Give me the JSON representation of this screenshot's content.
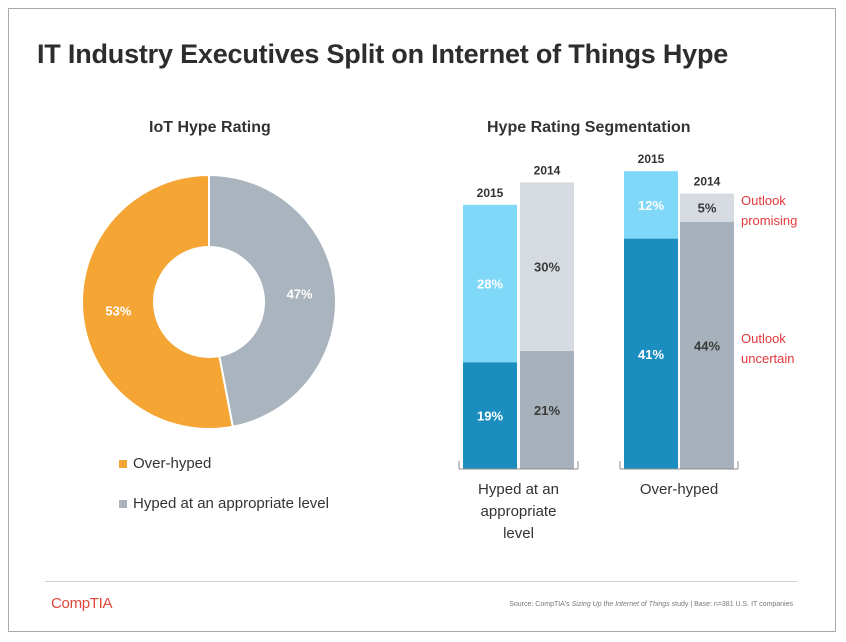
{
  "title": "IT Industry Executives Split on Internet of Things Hype",
  "colors": {
    "orange": "#f4a534",
    "gray": "#a9b4be",
    "light_blue": "#7fd8f7",
    "dark_blue": "#1b8ebf",
    "light_gray": "#d5dbe1",
    "mid_gray": "#a6b1bb",
    "red": "#e5383b"
  },
  "chart_data": [
    {
      "type": "pie",
      "variant": "donut",
      "title": "IoT Hype Rating",
      "slices": [
        {
          "label": "Over-hyped",
          "value": 53,
          "display": "53%",
          "color": "#f4a534"
        },
        {
          "label": "Hyped at an appropriate level",
          "value": 47,
          "display": "47%",
          "color": "#a9b4be"
        }
      ],
      "legend_position": "bottom-left"
    },
    {
      "type": "bar",
      "variant": "stacked",
      "title": "Hype Rating Segmentation",
      "groups": [
        {
          "label": "Hyped at an appropriate level",
          "label_lines": [
            "Hyped at an",
            "appropriate",
            "level"
          ],
          "bars": [
            {
              "year": "2015",
              "segments": [
                {
                  "name": "Outlook uncertain",
                  "value": 19,
                  "display": "19%",
                  "color": "#1b8ebf",
                  "text": "#ffffff"
                },
                {
                  "name": "Outlook promising",
                  "value": 28,
                  "display": "28%",
                  "color": "#7fd8f7",
                  "text": "#ffffff"
                }
              ]
            },
            {
              "year": "2014",
              "segments": [
                {
                  "name": "Outlook uncertain",
                  "value": 21,
                  "display": "21%",
                  "color": "#a6b1bb",
                  "text": "#3a3a3a"
                },
                {
                  "name": "Outlook promising",
                  "value": 30,
                  "display": "30%",
                  "color": "#d5dbe1",
                  "text": "#3a3a3a"
                }
              ]
            }
          ]
        },
        {
          "label": "Over-hyped",
          "label_lines": [
            "Over-hyped"
          ],
          "bars": [
            {
              "year": "2015",
              "segments": [
                {
                  "name": "Outlook uncertain",
                  "value": 41,
                  "display": "41%",
                  "color": "#1b8ebf",
                  "text": "#ffffff"
                },
                {
                  "name": "Outlook promising",
                  "value": 12,
                  "display": "12%",
                  "color": "#7fd8f7",
                  "text": "#ffffff"
                }
              ]
            },
            {
              "year": "2014",
              "segments": [
                {
                  "name": "Outlook uncertain",
                  "value": 44,
                  "display": "44%",
                  "color": "#a6b1bb",
                  "text": "#3a3a3a"
                },
                {
                  "name": "Outlook promising",
                  "value": 5,
                  "display": "5%",
                  "color": "#d5dbe1",
                  "text": "#3a3a3a"
                }
              ]
            }
          ]
        }
      ],
      "annotations": [
        {
          "text_lines": [
            "Outlook",
            "promising"
          ],
          "segment": "Outlook promising"
        },
        {
          "text_lines": [
            "Outlook",
            "uncertain"
          ],
          "segment": "Outlook uncertain"
        }
      ]
    }
  ],
  "footer": {
    "logo": "CompTIA",
    "source_prefix": "Source: CompTIA's ",
    "source_study": "Sizing Up the Internet of Things",
    "source_suffix": " study | Base: n=381 U.S. IT companies"
  }
}
